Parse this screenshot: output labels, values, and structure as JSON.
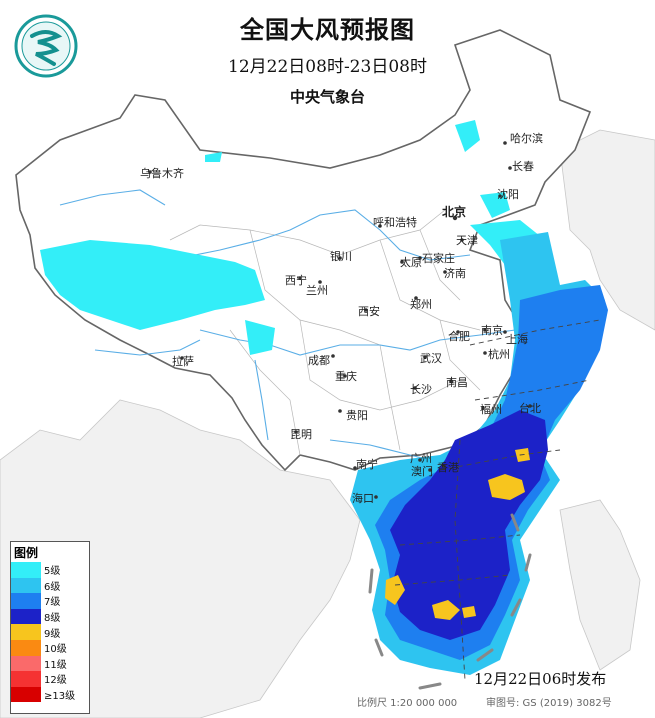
{
  "header": {
    "title": "全国大风预报图",
    "time_range": "12月22日08时-23日08时",
    "agency": "中央气象台"
  },
  "legend": {
    "title": "图例",
    "items": [
      {
        "label": "5级",
        "color": "#33eef8"
      },
      {
        "label": "6级",
        "color": "#2ec4f0"
      },
      {
        "label": "7级",
        "color": "#1e7ff0"
      },
      {
        "label": "8级",
        "color": "#1c22c8"
      },
      {
        "label": "9级",
        "color": "#f7c51e"
      },
      {
        "label": "10级",
        "color": "#fa8a12"
      },
      {
        "label": "11级",
        "color": "#fa6a6a"
      },
      {
        "label": "12级",
        "color": "#f53232"
      },
      {
        "label": "≥13级",
        "color": "#d80000"
      }
    ]
  },
  "cities": {
    "urumqi": "乌鲁木齐",
    "harbin": "哈尔滨",
    "changchun": "长春",
    "shenyang": "沈阳",
    "beijing": "北京",
    "tianjin": "天津",
    "hohhot": "呼和浩特",
    "yinchuan": "银川",
    "taiyuan": "太原",
    "shijiazhuang": "石家庄",
    "jinan": "济南",
    "xining": "西宁",
    "lanzhou": "兰州",
    "zhengzhou": "郑州",
    "xian": "西安",
    "hefei": "合肥",
    "nanjing": "南京",
    "shanghai": "上海",
    "lhasa": "拉萨",
    "chengdu": "成都",
    "wuhan": "武汉",
    "hangzhou": "杭州",
    "chongqing": "重庆",
    "changsha": "长沙",
    "nanchang": "南昌",
    "guiyang": "贵阳",
    "fuzhou": "福州",
    "kunming": "昆明",
    "taipei": "台北",
    "guangzhou": "广州",
    "nanning": "南宁",
    "hongkong": "香港",
    "macao": "澳门",
    "haikou": "海口"
  },
  "footer": {
    "issued": "12月22日06时发布",
    "scale": "比例尺  1:20 000 000",
    "review": "审图号: GS (2019) 3082号"
  }
}
